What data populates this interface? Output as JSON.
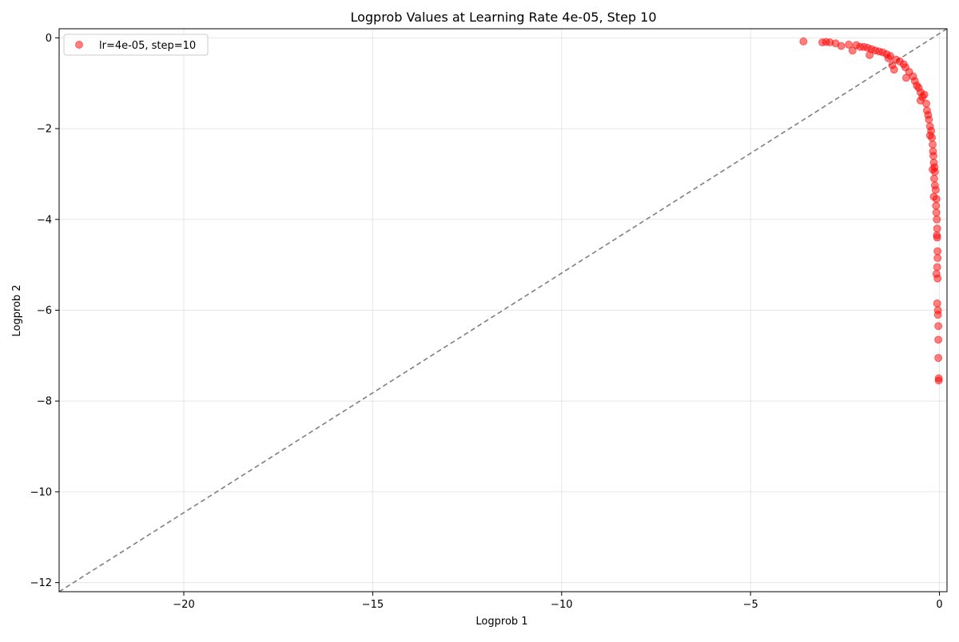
{
  "chart_data": {
    "type": "scatter",
    "title": "Logprob Values at Learning Rate 4e-05, Step 10",
    "xlabel": "Logprob 1",
    "ylabel": "Logprob 2",
    "xlim": [
      -23.3,
      0.2
    ],
    "ylim": [
      -12.2,
      0.2
    ],
    "xticks": [
      -20,
      -15,
      -10,
      -5,
      0
    ],
    "yticks": [
      -12,
      -10,
      -8,
      -6,
      -4,
      -2,
      0
    ],
    "xtick_labels": [
      "−20",
      "−15",
      "−10",
      "−5",
      "0"
    ],
    "ytick_labels": [
      "−12",
      "−10",
      "−8",
      "−6",
      "−4",
      "−2",
      "0"
    ],
    "grid": true,
    "legend_position": "upper-left",
    "colors": {
      "points": "#ff0000",
      "reference_line": "#7f7f7f"
    },
    "reference_line": {
      "style": "dashed",
      "from": [
        -23.3,
        -12.2
      ],
      "to": [
        0.2,
        0.2
      ]
    },
    "series": [
      {
        "name": "lr=4e-05, step=10",
        "points": [
          [
            -3.6,
            -0.08
          ],
          [
            -3.1,
            -0.1
          ],
          [
            -3.0,
            -0.09
          ],
          [
            -2.9,
            -0.1
          ],
          [
            -2.75,
            -0.12
          ],
          [
            -2.6,
            -0.18
          ],
          [
            -2.4,
            -0.15
          ],
          [
            -2.3,
            -0.28
          ],
          [
            -2.2,
            -0.16
          ],
          [
            -2.1,
            -0.2
          ],
          [
            -2.0,
            -0.2
          ],
          [
            -1.9,
            -0.22
          ],
          [
            -1.85,
            -0.38
          ],
          [
            -1.8,
            -0.25
          ],
          [
            -1.7,
            -0.28
          ],
          [
            -1.6,
            -0.3
          ],
          [
            -1.5,
            -0.32
          ],
          [
            -1.4,
            -0.36
          ],
          [
            -1.35,
            -0.45
          ],
          [
            -1.3,
            -0.4
          ],
          [
            -1.25,
            -0.6
          ],
          [
            -1.2,
            -0.7
          ],
          [
            -1.15,
            -0.48
          ],
          [
            -1.05,
            -0.52
          ],
          [
            -0.95,
            -0.58
          ],
          [
            -0.9,
            -0.65
          ],
          [
            -0.88,
            -0.88
          ],
          [
            -0.8,
            -0.75
          ],
          [
            -0.7,
            -0.85
          ],
          [
            -0.65,
            -0.95
          ],
          [
            -0.6,
            -1.05
          ],
          [
            -0.55,
            -1.1
          ],
          [
            -0.5,
            -1.2
          ],
          [
            -0.45,
            -1.3
          ],
          [
            -0.5,
            -1.38
          ],
          [
            -0.4,
            -1.25
          ],
          [
            -0.35,
            -1.45
          ],
          [
            -0.33,
            -1.6
          ],
          [
            -0.3,
            -1.7
          ],
          [
            -0.28,
            -1.8
          ],
          [
            -0.25,
            -1.95
          ],
          [
            -0.22,
            -2.05
          ],
          [
            -0.25,
            -2.15
          ],
          [
            -0.2,
            -2.2
          ],
          [
            -0.18,
            -2.35
          ],
          [
            -0.17,
            -2.5
          ],
          [
            -0.16,
            -2.6
          ],
          [
            -0.15,
            -2.75
          ],
          [
            -0.13,
            -2.85
          ],
          [
            -0.12,
            -2.95
          ],
          [
            -0.18,
            -2.9
          ],
          [
            -0.14,
            -3.1
          ],
          [
            -0.12,
            -3.25
          ],
          [
            -0.1,
            -3.35
          ],
          [
            -0.08,
            -3.55
          ],
          [
            -0.15,
            -3.5
          ],
          [
            -0.09,
            -3.7
          ],
          [
            -0.08,
            -3.85
          ],
          [
            -0.07,
            -4.0
          ],
          [
            -0.06,
            -4.2
          ],
          [
            -0.07,
            -4.35
          ],
          [
            -0.06,
            -4.4
          ],
          [
            -0.05,
            -4.7
          ],
          [
            -0.05,
            -4.85
          ],
          [
            -0.06,
            -5.05
          ],
          [
            -0.08,
            -5.2
          ],
          [
            -0.05,
            -5.3
          ],
          [
            -0.06,
            -5.85
          ],
          [
            -0.04,
            -6.0
          ],
          [
            -0.04,
            -6.1
          ],
          [
            -0.03,
            -6.35
          ],
          [
            -0.03,
            -6.65
          ],
          [
            -0.03,
            -7.05
          ],
          [
            -0.02,
            -7.5
          ],
          [
            -0.02,
            -7.55
          ]
        ]
      }
    ]
  }
}
